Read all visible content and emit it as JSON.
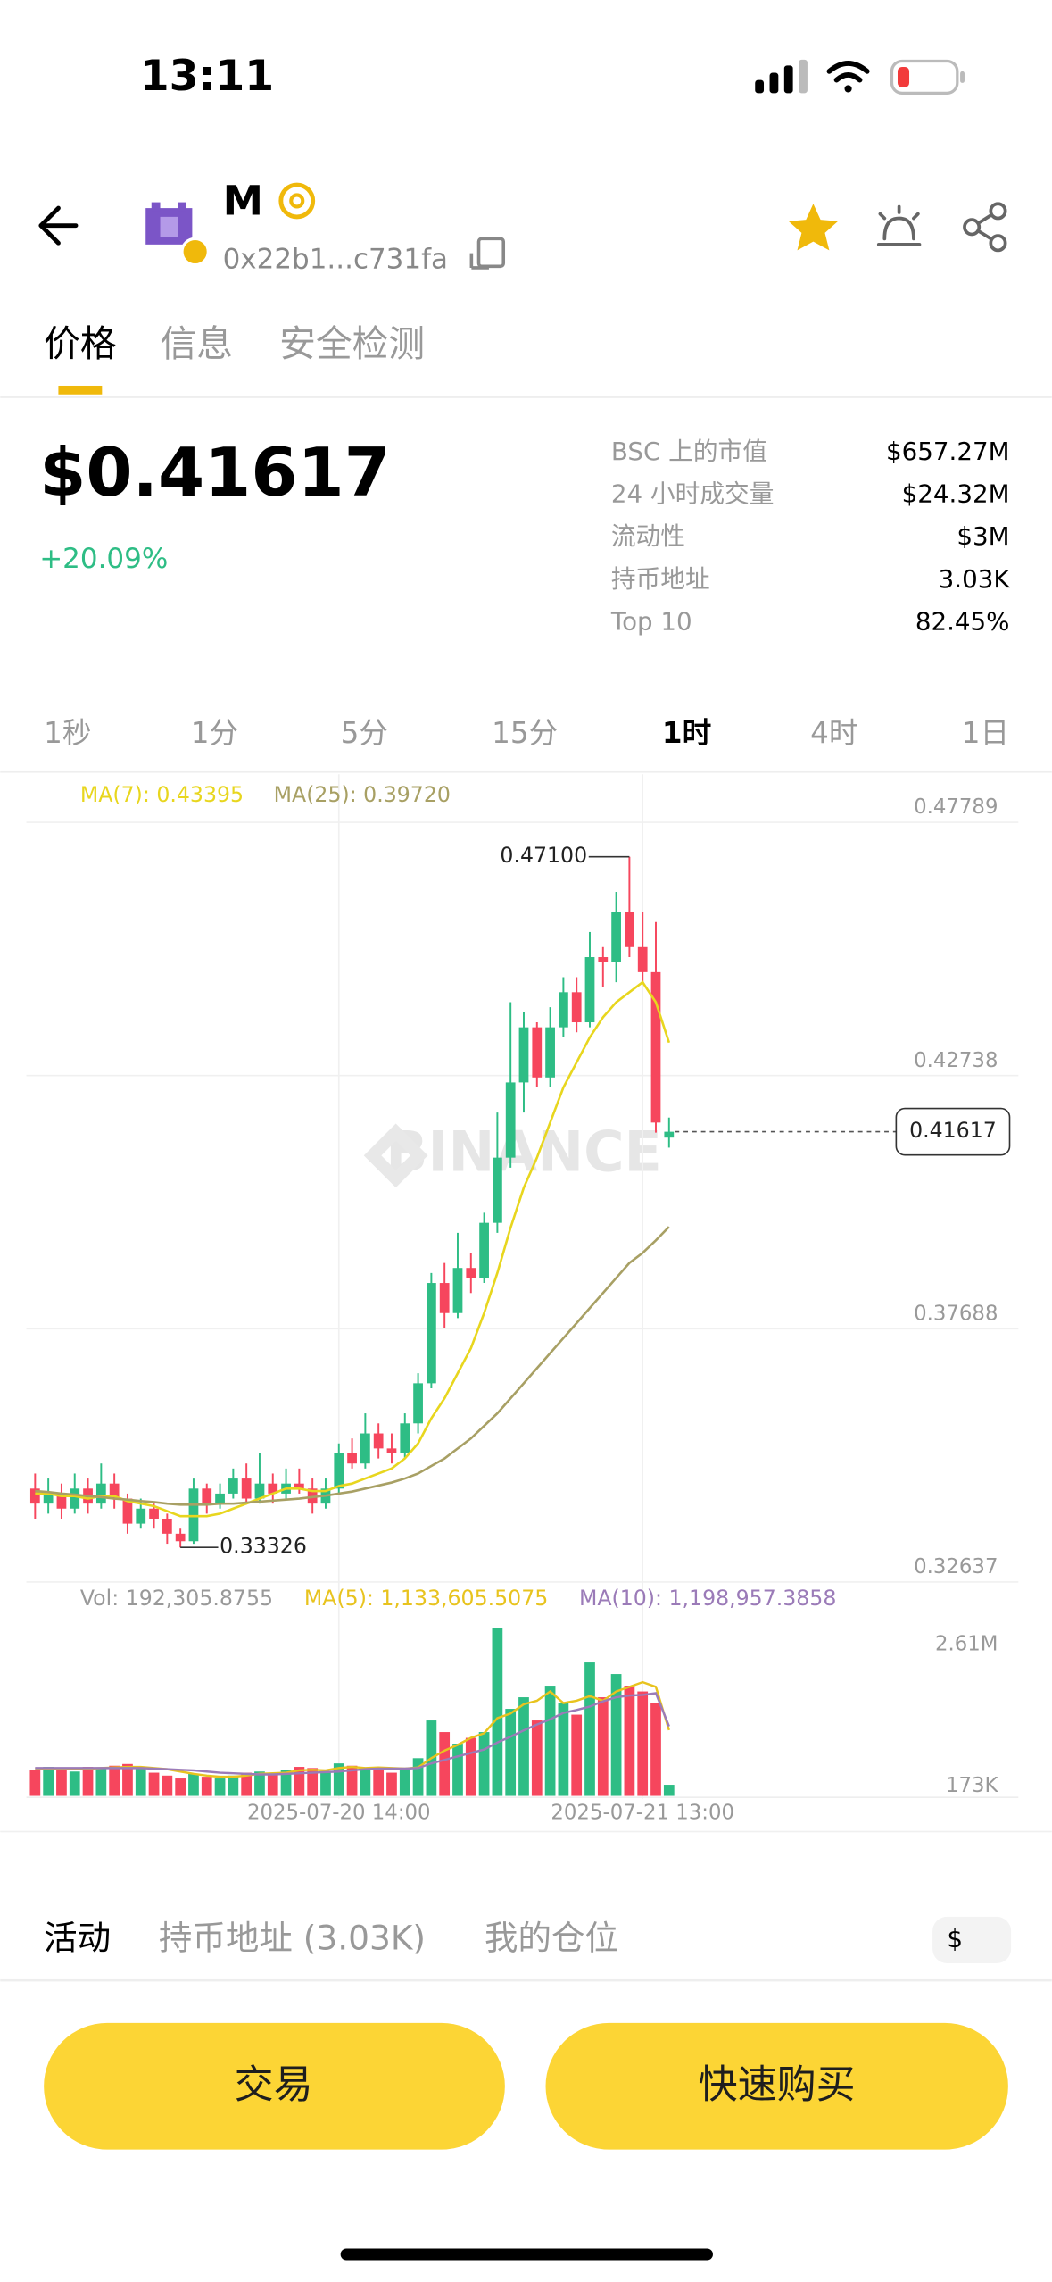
{
  "status_bar": {
    "time": "13:11"
  },
  "header": {
    "symbol": "M",
    "address": "0x22b1...c731fa"
  },
  "tabs": [
    "价格",
    "信息",
    "安全检测"
  ],
  "price": "$0.41617",
  "change": "+20.09%",
  "stats": [
    {
      "label": "BSC 上的市值",
      "value": "$657.27M"
    },
    {
      "label": "24 小时成交量",
      "value": "$24.32M"
    },
    {
      "label": "流动性",
      "value": "$3M"
    },
    {
      "label": "持币地址",
      "value": "3.03K"
    },
    {
      "label": "Top 10",
      "value": "82.45%"
    }
  ],
  "timeframes": [
    "1秒",
    "1分",
    "5分",
    "15分",
    "1时",
    "4时",
    "1日"
  ],
  "active_timeframe": "1时",
  "chart_data": {
    "type": "candlestick",
    "up_color": "#2ebd85",
    "down_color": "#f6465d",
    "categories": [
      null,
      null,
      null,
      null,
      null,
      null,
      null,
      null,
      null,
      null,
      null,
      null,
      null,
      null,
      null,
      null,
      null,
      null,
      null,
      null,
      null,
      null,
      null,
      "2025-07-20 14:00",
      null,
      null,
      null,
      null,
      null,
      null,
      null,
      null,
      null,
      null,
      null,
      null,
      null,
      null,
      null,
      null,
      null,
      null,
      null,
      null,
      null,
      null,
      "2025-07-21 13:00",
      null,
      null
    ],
    "open": [
      0.345,
      0.342,
      0.344,
      0.341,
      0.345,
      0.342,
      0.346,
      0.343,
      0.338,
      0.341,
      0.339,
      0.336,
      0.3345,
      0.345,
      0.342,
      0.344,
      0.347,
      0.343,
      0.346,
      0.344,
      0.346,
      0.345,
      0.342,
      0.345,
      0.352,
      0.35,
      0.356,
      0.353,
      0.352,
      0.358,
      0.366,
      0.386,
      0.38,
      0.389,
      0.387,
      0.398,
      0.411,
      0.426,
      0.437,
      0.427,
      0.437,
      0.444,
      0.438,
      0.451,
      0.45,
      0.46,
      0.453,
      0.448,
      0.415
    ],
    "high": [
      0.348,
      0.347,
      0.346,
      0.348,
      0.347,
      0.35,
      0.348,
      0.344,
      0.343,
      0.342,
      0.34,
      0.337,
      0.347,
      0.346,
      0.346,
      0.349,
      0.35,
      0.352,
      0.348,
      0.349,
      0.349,
      0.347,
      0.347,
      0.354,
      0.355,
      0.36,
      0.358,
      0.356,
      0.36,
      0.368,
      0.388,
      0.39,
      0.396,
      0.392,
      0.4,
      0.42,
      0.442,
      0.44,
      0.438,
      0.441,
      0.447,
      0.447,
      0.456,
      0.453,
      0.464,
      0.471,
      0.46,
      0.458,
      0.419
    ],
    "low": [
      0.339,
      0.34,
      0.339,
      0.34,
      0.34,
      0.341,
      0.341,
      0.336,
      0.337,
      0.337,
      0.334,
      0.33326,
      0.334,
      0.34,
      0.341,
      0.343,
      0.342,
      0.342,
      0.342,
      0.343,
      0.344,
      0.34,
      0.341,
      0.344,
      0.349,
      0.349,
      0.351,
      0.35,
      0.351,
      0.356,
      0.365,
      0.377,
      0.379,
      0.384,
      0.386,
      0.396,
      0.409,
      0.42,
      0.425,
      0.425,
      0.435,
      0.436,
      0.437,
      0.445,
      0.446,
      0.451,
      0.446,
      0.416,
      0.413
    ],
    "close": [
      0.342,
      0.344,
      0.341,
      0.345,
      0.342,
      0.346,
      0.343,
      0.338,
      0.341,
      0.339,
      0.336,
      0.3345,
      0.345,
      0.342,
      0.344,
      0.347,
      0.343,
      0.346,
      0.344,
      0.346,
      0.345,
      0.342,
      0.345,
      0.352,
      0.35,
      0.356,
      0.353,
      0.352,
      0.358,
      0.366,
      0.386,
      0.38,
      0.389,
      0.387,
      0.398,
      0.411,
      0.426,
      0.437,
      0.427,
      0.437,
      0.444,
      0.438,
      0.451,
      0.45,
      0.46,
      0.453,
      0.448,
      0.418,
      0.41617
    ],
    "ylim": [
      0.32637,
      0.47789
    ],
    "yticks": [
      0.32637,
      0.37688,
      0.42738,
      0.47789
    ],
    "series": [
      {
        "name": "MA(7): 0.43395",
        "color": "#e8d61e",
        "values": [
          0.344,
          0.344,
          0.3435,
          0.3435,
          0.343,
          0.3435,
          0.3435,
          0.3425,
          0.342,
          0.3415,
          0.3405,
          0.3395,
          0.3395,
          0.3395,
          0.34,
          0.341,
          0.342,
          0.343,
          0.344,
          0.345,
          0.345,
          0.3445,
          0.3445,
          0.3455,
          0.346,
          0.347,
          0.348,
          0.349,
          0.351,
          0.354,
          0.359,
          0.363,
          0.368,
          0.373,
          0.38,
          0.388,
          0.397,
          0.405,
          0.411,
          0.418,
          0.425,
          0.43,
          0.435,
          0.439,
          0.442,
          0.444,
          0.446,
          0.442,
          0.43395
        ]
      },
      {
        "name": "MA(25): 0.39720",
        "color": "#a8a064",
        "values": [
          0.3445,
          0.3443,
          0.344,
          0.3438,
          0.3435,
          0.3433,
          0.343,
          0.3428,
          0.3425,
          0.3423,
          0.342,
          0.3418,
          0.3418,
          0.3418,
          0.342,
          0.342,
          0.3422,
          0.3424,
          0.3426,
          0.3428,
          0.343,
          0.3433,
          0.3436,
          0.344,
          0.3444,
          0.345,
          0.3456,
          0.3462,
          0.347,
          0.348,
          0.3495,
          0.351,
          0.353,
          0.355,
          0.3575,
          0.36,
          0.363,
          0.366,
          0.369,
          0.372,
          0.375,
          0.378,
          0.381,
          0.384,
          0.387,
          0.39,
          0.392,
          0.3945,
          0.3972
        ]
      }
    ],
    "high_label": "0.47100",
    "low_label": "0.33326",
    "last_label": "0.41617",
    "volume": {
      "legend": "Vol: 192,305.8755",
      "values": [
        450000,
        500000,
        480000,
        420000,
        500000,
        470000,
        520000,
        550000,
        480000,
        400000,
        350000,
        300000,
        380000,
        330000,
        300000,
        350000,
        400000,
        420000,
        380000,
        450000,
        500000,
        480000,
        420000,
        560000,
        520000,
        450000,
        480000,
        400000,
        450000,
        650000,
        1300000,
        1100000,
        900000,
        1000000,
        1100000,
        2900000,
        1500000,
        1700000,
        1300000,
        1900000,
        1600000,
        1400000,
        2300000,
        1700000,
        2100000,
        1900000,
        1800000,
        1600000,
        192305.8755
      ],
      "ylim": [
        0,
        3110000
      ],
      "yticks": [
        {
          "value": 173000,
          "label": "173K"
        },
        {
          "value": 2610000,
          "label": "2.61M"
        }
      ],
      "series": [
        {
          "name": "MA(5): 1,133,605.5075",
          "color": "#e8c31e",
          "values": [
            470000,
            470000,
            470000,
            470000,
            470000,
            480000,
            490000,
            500000,
            500000,
            480000,
            460000,
            420000,
            380000,
            350000,
            330000,
            330000,
            350000,
            380000,
            390000,
            400000,
            440000,
            450000,
            440000,
            480000,
            500000,
            480000,
            490000,
            480000,
            470000,
            490000,
            650000,
            780000,
            880000,
            1000000,
            1080000,
            1340000,
            1420000,
            1580000,
            1640000,
            1800000,
            1600000,
            1640000,
            1720000,
            1640000,
            1800000,
            1880000,
            1960000,
            1880000,
            1133605.5075
          ]
        },
        {
          "name": "MA(10): 1,198,957.3858",
          "color": "#9b7bb8",
          "values": [
            480000,
            480000,
            480000,
            480000,
            480000,
            480000,
            480000,
            480000,
            480000,
            470000,
            460000,
            450000,
            440000,
            420000,
            400000,
            390000,
            380000,
            370000,
            370000,
            380000,
            390000,
            400000,
            410000,
            420000,
            440000,
            460000,
            470000,
            470000,
            470000,
            480000,
            560000,
            620000,
            680000,
            740000,
            800000,
            920000,
            1020000,
            1130000,
            1230000,
            1320000,
            1430000,
            1480000,
            1540000,
            1630000,
            1700000,
            1730000,
            1740000,
            1770000,
            1198957.3858
          ]
        }
      ]
    }
  },
  "watermark": "BINANCE",
  "bottom_tabs": [
    "活动",
    "持币地址 (3.03K)",
    "我的仓位"
  ],
  "currency": "$",
  "buttons": [
    "交易",
    "快速购买"
  ]
}
